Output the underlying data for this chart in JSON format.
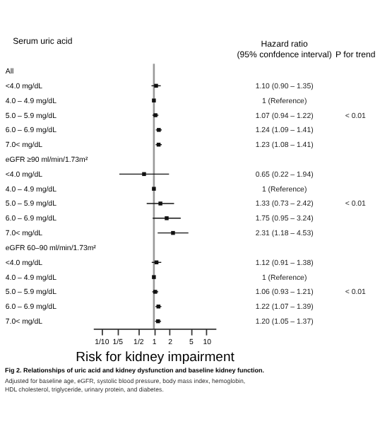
{
  "chart_data": {
    "type": "scatter",
    "orientation": "horizontal",
    "log": "x",
    "marker": "square",
    "grid": false,
    "title": "Fig 2. Relationships of uric acid and kidney dysfunction and baseline kidney function.",
    "subtitle": [
      "Adjusted for baseline age, eGFR, systolic blood pressure, body mass index, hemoglobin,",
      "HDL cholesterol, triglyceride, urinary protein, and diabetes."
    ],
    "xlabel": "Risk for kidney impairment",
    "ylabel": "Serum uric acid",
    "categories": [
      "All",
      "<4.0 mg/dL",
      "4.0 – 4.9 mg/dL",
      "5.0 – 5.9 mg/dL",
      "6.0 – 6.9 mg/dL",
      "7.0< mg/dL",
      "eGFR ≥90 ml/min/1.73m²",
      "<4.0 mg/dL",
      "4.0 – 4.9 mg/dL",
      "5.0 – 5.9 mg/dL",
      "6.0 – 6.9 mg/dL",
      "7.0< mg/dL",
      "eGFR 60–90 ml/min/1.73m²",
      "<4.0 mg/dL",
      "4.0 – 4.9 mg/dL",
      "5.0 – 5.9 mg/dL",
      "6.0 – 6.9 mg/dL",
      "7.0< mg/dL"
    ],
    "values": [
      null,
      1.1,
      1,
      1.07,
      1.24,
      1.23,
      null,
      0.65,
      1,
      1.33,
      1.75,
      2.31,
      null,
      1.12,
      1,
      1.06,
      1.22,
      1.2
    ],
    "errors": [
      null,
      [
        0.9,
        1.35
      ],
      null,
      [
        0.94,
        1.22
      ],
      [
        1.09,
        1.41
      ],
      [
        1.08,
        1.41
      ],
      null,
      [
        0.22,
        1.94
      ],
      null,
      [
        0.73,
        2.42
      ],
      [
        0.95,
        3.24
      ],
      [
        1.18,
        4.53
      ],
      null,
      [
        0.91,
        1.38
      ],
      null,
      [
        0.93,
        1.21
      ],
      [
        1.07,
        1.39
      ],
      [
        1.05,
        1.37
      ]
    ],
    "color": "#111111",
    "xlim": [
      0.07,
      15
    ],
    "xticks": [
      {
        "value": 0.1,
        "label": "1/10"
      },
      {
        "value": 0.2,
        "label": "1/5"
      },
      {
        "value": 0.5,
        "label": "1/2"
      },
      1,
      2,
      5,
      10
    ],
    "ref_lines": [
      {
        "axis": "x",
        "value": 1,
        "color": "#999999"
      }
    ],
    "annotations": [
      "Hazard ratio\n(95% confdence interval)",
      "P for trend",
      "1.10 (0.90 – 1.35)",
      "1 (Reference)",
      "1.07 (0.94 – 1.22)",
      "1.24 (1.09 – 1.41)",
      "1.23 (1.08 – 1.41)",
      "0.65 (0.22 – 1.94)",
      "1 (Reference)",
      "1.33 (0.73 – 2.42)",
      "1.75 (0.95 – 3.24)",
      "2.31 (1.18 – 4.53)",
      "1.12 (0.91 – 1.38)",
      "1 (Reference)",
      "1.06 (0.93 – 1.21)",
      "1.22 (1.07 – 1.39)",
      "1.20 (1.05 – 1.37)",
      "< 0.01",
      "< 0.01",
      "< 0.01"
    ]
  }
}
